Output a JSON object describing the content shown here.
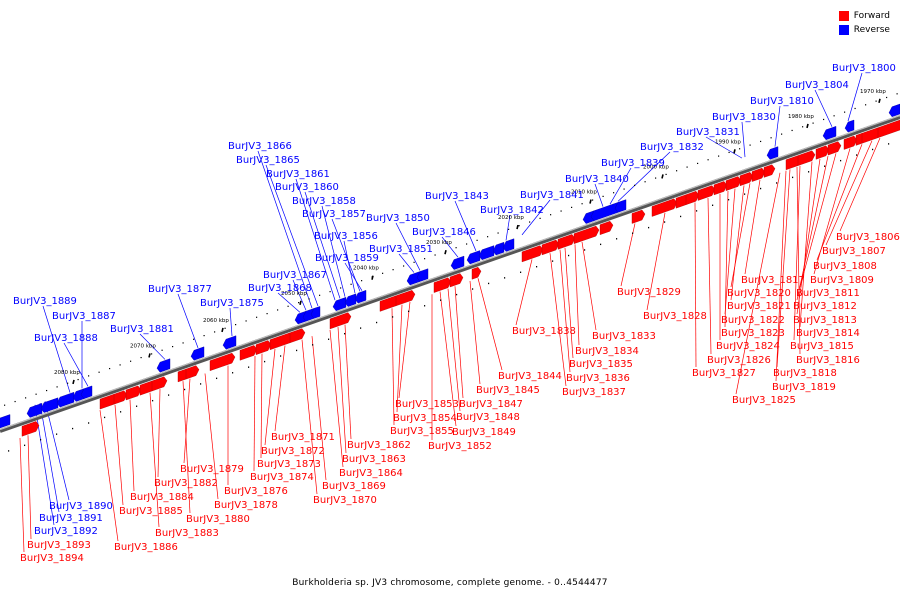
{
  "caption": "Burkholderia sp. JV3 chromosome, complete genome. - 0..4544477",
  "legend": [
    {
      "label": "Forward",
      "color": "#ff0000"
    },
    {
      "label": "Reverse",
      "color": "#0000ff"
    }
  ],
  "colors": {
    "forward": "#ff0000",
    "reverse": "#0000ff",
    "backbone": "#808080"
  },
  "scale_ticks": [
    "1970 kbp",
    "1980 kbp",
    "1990 kbp",
    "2000 kbp",
    "2010 kbp",
    "2020 kbp",
    "2030 kbp",
    "2040 kbp",
    "2050 kbp",
    "2060 kbp",
    "2070 kbp",
    "2080 kbp"
  ],
  "reverse_genes": [
    "BurJV3_1800",
    "BurJV3_1804",
    "BurJV3_1810",
    "BurJV3_1830",
    "BurJV3_1831",
    "BurJV3_1832",
    "BurJV3_1839",
    "BurJV3_1840",
    "BurJV3_1841",
    "BurJV3_1842",
    "BurJV3_1843",
    "BurJV3_1846",
    "BurJV3_1850",
    "BurJV3_1851",
    "BurJV3_1856",
    "BurJV3_1857",
    "BurJV3_1858",
    "BurJV3_1859",
    "BurJV3_1860",
    "BurJV3_1861",
    "BurJV3_1865",
    "BurJV3_1866",
    "BurJV3_1867",
    "BurJV3_1868",
    "BurJV3_1875",
    "BurJV3_1877",
    "BurJV3_1881",
    "BurJV3_1887",
    "BurJV3_1888",
    "BurJV3_1889",
    "BurJV3_1890",
    "BurJV3_1891",
    "BurJV3_1892"
  ],
  "forward_genes": [
    "BurJV3_1806",
    "BurJV3_1807",
    "BurJV3_1808",
    "BurJV3_1809",
    "BurJV3_1811",
    "BurJV3_1812",
    "BurJV3_1813",
    "BurJV3_1814",
    "BurJV3_1815",
    "BurJV3_1816",
    "BurJV3_1817",
    "BurJV3_1818",
    "BurJV3_1819",
    "BurJV3_1820",
    "BurJV3_1821",
    "BurJV3_1822",
    "BurJV3_1823",
    "BurJV3_1824",
    "BurJV3_1825",
    "BurJV3_1826",
    "BurJV3_1827",
    "BurJV3_1828",
    "BurJV3_1829",
    "BurJV3_1833",
    "BurJV3_1834",
    "BurJV3_1835",
    "BurJV3_1836",
    "BurJV3_1837",
    "BurJV3_1838",
    "BurJV3_1844",
    "BurJV3_1845",
    "BurJV3_1847",
    "BurJV3_1848",
    "BurJV3_1849",
    "BurJV3_1852",
    "BurJV3_1853",
    "BurJV3_1854",
    "BurJV3_1855",
    "BurJV3_1862",
    "BurJV3_1863",
    "BurJV3_1864",
    "BurJV3_1869",
    "BurJV3_1870",
    "BurJV3_1871",
    "BurJV3_1872",
    "BurJV3_1873",
    "BurJV3_1874",
    "BurJV3_1876",
    "BurJV3_1878",
    "BurJV3_1879",
    "BurJV3_1880",
    "BurJV3_1882",
    "BurJV3_1883",
    "BurJV3_1884",
    "BurJV3_1885",
    "BurJV3_1886",
    "BurJV3_1893",
    "BurJV3_1894"
  ]
}
